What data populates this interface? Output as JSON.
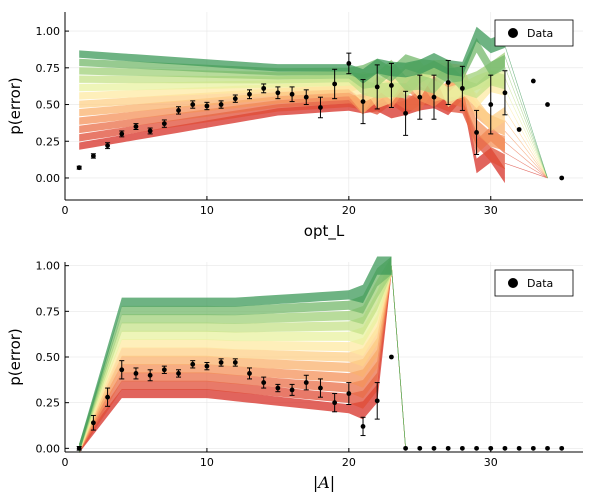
{
  "chart_data": [
    {
      "type": "scatter",
      "xlabel": "opt_L",
      "ylabel": "p(error)",
      "xlim": [
        0,
        36.5
      ],
      "ylim": [
        -0.15,
        1.13
      ],
      "xticks": [
        "0",
        "10",
        "20",
        "30"
      ],
      "yticks": [
        "0.00",
        "0.25",
        "0.50",
        "0.75",
        "1.00"
      ],
      "legend": {
        "position": "top-right",
        "entries": [
          "Data"
        ]
      },
      "grid": true,
      "data": {
        "x": [
          1,
          2,
          3,
          4,
          5,
          6,
          7,
          8,
          9,
          10,
          11,
          12,
          13,
          14,
          15,
          16,
          17,
          18,
          19,
          20,
          21,
          22,
          23,
          24,
          25,
          26,
          27,
          28,
          29,
          30,
          31,
          32,
          33,
          34,
          35
        ],
        "y": [
          0.07,
          0.15,
          0.22,
          0.3,
          0.35,
          0.32,
          0.37,
          0.46,
          0.5,
          0.49,
          0.5,
          0.54,
          0.57,
          0.61,
          0.58,
          0.57,
          0.55,
          0.48,
          0.64,
          0.78,
          0.52,
          0.62,
          0.63,
          0.44,
          0.55,
          0.55,
          0.65,
          0.61,
          0.31,
          0.5,
          0.58,
          0.33,
          0.66,
          0.5,
          0.0
        ],
        "err": [
          0.01,
          0.015,
          0.02,
          0.02,
          0.02,
          0.02,
          0.025,
          0.025,
          0.025,
          0.025,
          0.025,
          0.025,
          0.03,
          0.03,
          0.04,
          0.05,
          0.05,
          0.07,
          0.1,
          0.07,
          0.15,
          0.15,
          0.15,
          0.15,
          0.15,
          0.15,
          0.15,
          0.15,
          0.15,
          0.2,
          0.15,
          0,
          0,
          0,
          0
        ]
      },
      "bands": {
        "x_end": 31,
        "count": 12,
        "colors": [
          "#d73027",
          "#e04d37",
          "#ea6f48",
          "#f4915a",
          "#f9b26d",
          "#fdd088",
          "#fee9a3",
          "#e8f1a0",
          "#c6e28a",
          "#a0d07a",
          "#74b86b",
          "#3e9a5a"
        ]
      }
    },
    {
      "type": "scatter",
      "xlabel": "|A|",
      "ylabel": "p(error)",
      "xlim": [
        0,
        36.5
      ],
      "ylim": [
        -0.02,
        1.02
      ],
      "xticks": [
        "0",
        "10",
        "20",
        "30"
      ],
      "yticks": [
        "0.00",
        "0.25",
        "0.50",
        "0.75",
        "1.00"
      ],
      "legend": {
        "position": "top-right",
        "entries": [
          "Data"
        ]
      },
      "grid": true,
      "data": {
        "x": [
          1,
          2,
          3,
          4,
          5,
          6,
          7,
          8,
          9,
          10,
          11,
          12,
          13,
          14,
          15,
          16,
          17,
          18,
          19,
          20,
          21,
          22,
          23,
          24,
          25,
          26,
          27,
          28,
          29,
          30,
          31,
          32,
          33,
          34,
          35
        ],
        "y": [
          0.0,
          0.14,
          0.28,
          0.43,
          0.41,
          0.4,
          0.43,
          0.41,
          0.46,
          0.45,
          0.47,
          0.47,
          0.41,
          0.36,
          0.33,
          0.32,
          0.36,
          0.33,
          0.25,
          0.3,
          0.12,
          0.26,
          0.5,
          0.0,
          0.0,
          0.0,
          0.0,
          0.0,
          0.0,
          0.0,
          0.0,
          0.0,
          0.0,
          0.0,
          0.0
        ],
        "err": [
          0.01,
          0.04,
          0.05,
          0.05,
          0.03,
          0.03,
          0.02,
          0.02,
          0.02,
          0.02,
          0.02,
          0.02,
          0.03,
          0.03,
          0.02,
          0.03,
          0.04,
          0.05,
          0.05,
          0.06,
          0.05,
          0.1,
          0,
          0,
          0,
          0,
          0,
          0,
          0,
          0,
          0,
          0,
          0,
          0,
          0
        ]
      },
      "bands": {
        "x_end": 23,
        "count": 12,
        "colors": [
          "#d73027",
          "#e04d37",
          "#ea6f48",
          "#f4915a",
          "#f9b26d",
          "#fdd088",
          "#fee9a3",
          "#e8f1a0",
          "#c6e28a",
          "#a0d07a",
          "#74b86b",
          "#3e9a5a"
        ]
      }
    }
  ]
}
